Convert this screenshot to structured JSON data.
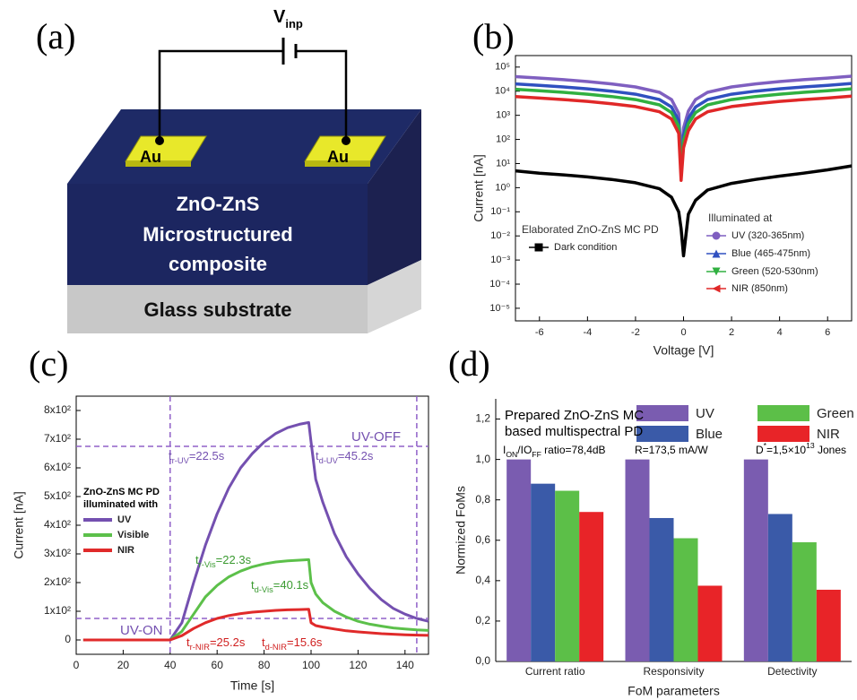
{
  "diagram": {
    "panel_label": "(a)",
    "voltage_label": "V",
    "voltage_subscript": "inp",
    "electrodes": [
      "Au",
      "Au"
    ],
    "composite_lines": [
      "ZnO-ZnS",
      "Microstructured",
      "composite"
    ],
    "substrate_label": "Glass substrate"
  },
  "chart_data": [
    {
      "type": "line",
      "panel_label": "(b)",
      "x_label": "Voltage [V]",
      "y_label": "Current [nA]",
      "log_y": true,
      "xlim": [
        -7,
        7
      ],
      "xticks": [
        -6,
        -4,
        -2,
        0,
        2,
        4,
        6
      ],
      "ylim": [
        3e-06,
        300000
      ],
      "yticks": [
        {
          "value": 100000,
          "label": "10⁵"
        },
        {
          "value": 10000,
          "label": "10⁴"
        },
        {
          "value": 1000,
          "label": "10³"
        },
        {
          "value": 100,
          "label": "10²"
        },
        {
          "value": 10,
          "label": "10¹"
        },
        {
          "value": 1,
          "label": "10⁰"
        },
        {
          "value": 0.1,
          "label": "10⁻¹"
        },
        {
          "value": 0.01,
          "label": "10⁻²"
        },
        {
          "value": 0.001,
          "label": "10⁻³"
        },
        {
          "value": 0.0001,
          "label": "10⁻⁴"
        },
        {
          "value": 1e-05,
          "label": "10⁻⁵"
        }
      ],
      "x": [
        -7,
        -6,
        -5,
        -4,
        -3,
        -2,
        -1,
        -0.5,
        -0.2,
        -0.1,
        0,
        0.2,
        0.5,
        1,
        2,
        3,
        4,
        5,
        6,
        7
      ],
      "series": [
        {
          "name": "UV (320-365nm)",
          "color": "#7f5fc0",
          "marker": "circle",
          "values": [
            40000,
            35000,
            30000,
            25000,
            20000,
            15000,
            9000,
            4500,
            1200,
            15,
            300,
            1500,
            4500,
            9000,
            15000,
            20000,
            25000,
            30000,
            35000,
            42000
          ]
        },
        {
          "name": "Blue (465-475nm)",
          "color": "#3050c0",
          "marker": "triangle-up",
          "values": [
            20000,
            17500,
            15000,
            12500,
            10000,
            7500,
            4500,
            2200,
            600,
            5,
            150,
            750,
            2200,
            4500,
            7500,
            10000,
            12500,
            15000,
            17500,
            21000
          ]
        },
        {
          "name": "Green (520-530nm)",
          "color": "#30b040",
          "marker": "triangle-down",
          "values": [
            12000,
            10500,
            9000,
            7500,
            6000,
            4500,
            2700,
            1300,
            350,
            4,
            90,
            450,
            1300,
            2700,
            4500,
            6000,
            7500,
            9000,
            10500,
            12500
          ]
        },
        {
          "name": "NIR (850nm)",
          "color": "#e02828",
          "marker": "triangle-left",
          "values": [
            6000,
            5200,
            4500,
            3800,
            3000,
            2300,
            1400,
            700,
            180,
            2,
            45,
            230,
            700,
            1400,
            2300,
            3000,
            3800,
            4500,
            5200,
            6200
          ]
        },
        {
          "name": "Dark condition",
          "color": "#000000",
          "marker": "square",
          "values": [
            5,
            4,
            3.4,
            2.8,
            2.2,
            1.6,
            0.9,
            0.4,
            0.1,
            0.02,
            0.0015,
            0.08,
            0.3,
            0.8,
            1.5,
            2.2,
            3,
            4,
            5.5,
            8
          ]
        }
      ],
      "annotations": [
        {
          "color": "#333333",
          "parts": [
            {
              "text": "Elaborated ZnO-ZnS MC PD"
            }
          ]
        },
        {
          "color": "#333333",
          "parts": [
            {
              "text": "Illuminated at"
            }
          ]
        }
      ]
    },
    {
      "type": "line",
      "panel_label": "(c)",
      "x_label": "Time [s]",
      "y_label": "Current [nA]",
      "xlim": [
        0,
        150
      ],
      "xticks": [
        0,
        20,
        40,
        60,
        80,
        100,
        120,
        140
      ],
      "ylim": [
        -50,
        850
      ],
      "yticks": [
        0,
        {
          "value": 100,
          "label": "1x10²"
        },
        {
          "value": 200,
          "label": "2x10²"
        },
        {
          "value": 300,
          "label": "3x10²"
        },
        {
          "value": 400,
          "label": "4x10²"
        },
        {
          "value": 500,
          "label": "5x10²"
        },
        {
          "value": 600,
          "label": "6x10²"
        },
        {
          "value": 700,
          "label": "7x10²"
        },
        {
          "value": 800,
          "label": "8x10²"
        }
      ],
      "reference_lines": {
        "color": "#9060c8",
        "x": [
          40,
          145
        ],
        "y": [
          675,
          75
        ]
      },
      "x": [
        3,
        10,
        20,
        30,
        40,
        45,
        50,
        55,
        60,
        65,
        70,
        75,
        80,
        85,
        90,
        95,
        99,
        100,
        102,
        105,
        110,
        115,
        120,
        125,
        130,
        135,
        140,
        145,
        150
      ],
      "series": [
        {
          "name": "UV",
          "color": "#7450b0",
          "values": [
            0,
            0,
            0,
            0,
            0,
            60,
            200,
            330,
            440,
            530,
            600,
            650,
            690,
            720,
            740,
            752,
            758,
            690,
            560,
            480,
            370,
            290,
            230,
            180,
            140,
            110,
            90,
            75,
            65
          ]
        },
        {
          "name": "Visible",
          "color": "#5cc04a",
          "values": [
            0,
            0,
            0,
            0,
            0,
            30,
            90,
            150,
            190,
            220,
            240,
            255,
            265,
            272,
            276,
            278,
            280,
            200,
            160,
            130,
            100,
            80,
            65,
            55,
            48,
            42,
            38,
            35,
            33
          ]
        },
        {
          "name": "NIR",
          "color": "#e02a2a",
          "values": [
            0,
            0,
            0,
            0,
            0,
            15,
            40,
            60,
            75,
            85,
            92,
            97,
            100,
            103,
            105,
            106,
            107,
            60,
            50,
            45,
            38,
            32,
            28,
            25,
            22,
            20,
            18,
            17,
            16
          ]
        }
      ],
      "annotations": [
        {
          "color": "#000000",
          "parts": [
            {
              "text": "ZnO-ZnS MC PD"
            }
          ]
        },
        {
          "color": "#000000",
          "parts": [
            {
              "text": "illuminated with"
            }
          ]
        },
        {
          "color": "#7450b0",
          "parts": [
            {
              "text": "UV-OFF"
            }
          ]
        },
        {
          "color": "#7450b0",
          "parts": [
            {
              "text": "UV-ON"
            }
          ]
        },
        {
          "color": "#7450b0",
          "parts": [
            {
              "text": "t"
            },
            {
              "sub": "r-UV"
            },
            {
              "text": "=22.5s"
            }
          ]
        },
        {
          "color": "#7450b0",
          "parts": [
            {
              "text": "t"
            },
            {
              "sub": "d-UV"
            },
            {
              "text": "=45.2s"
            }
          ]
        },
        {
          "color": "#3a9a30",
          "parts": [
            {
              "text": "t"
            },
            {
              "sub": "r-Vis"
            },
            {
              "text": "=22.3s"
            }
          ]
        },
        {
          "color": "#3a9a30",
          "parts": [
            {
              "text": "t"
            },
            {
              "sub": "d-Vis"
            },
            {
              "text": "=40.1s"
            }
          ]
        },
        {
          "color": "#d02020",
          "parts": [
            {
              "text": "t"
            },
            {
              "sub": "r-NIR"
            },
            {
              "text": "=25.2s"
            }
          ]
        },
        {
          "color": "#d02020",
          "parts": [
            {
              "text": "t"
            },
            {
              "sub": "d-NIR"
            },
            {
              "text": "=15.6s"
            }
          ]
        }
      ]
    },
    {
      "type": "bar",
      "panel_label": "(d)",
      "x_label": "FoM parameters",
      "y_label": "Normized FoMs",
      "categories": [
        "Current ratio",
        "Responsivity",
        "Detectivity"
      ],
      "ylim": [
        0,
        1.3
      ],
      "yticks": [
        {
          "value": 0,
          "label": "0,0"
        },
        {
          "value": 0.2,
          "label": "0,2"
        },
        {
          "value": 0.4,
          "label": "0,4"
        },
        {
          "value": 0.6,
          "label": "0,6"
        },
        {
          "value": 0.8,
          "label": "0,8"
        },
        {
          "value": 1,
          "label": "1,0"
        },
        {
          "value": 1.2,
          "label": "1,2"
        }
      ],
      "series": [
        {
          "name": "UV",
          "color": "#7a5cb0",
          "values": [
            1.0,
            1.0,
            1.0
          ]
        },
        {
          "name": "Blue",
          "color": "#3a5aa8",
          "values": [
            0.88,
            0.71,
            0.73
          ]
        },
        {
          "name": "Green",
          "color": "#5cbf48",
          "values": [
            0.845,
            0.61,
            0.59
          ]
        },
        {
          "name": "NIR",
          "color": "#e82428",
          "values": [
            0.74,
            0.375,
            0.355
          ]
        }
      ],
      "annotations": [
        {
          "color": "#000000",
          "parts": [
            {
              "text": "Prepared ZnO-ZnS MC"
            }
          ]
        },
        {
          "color": "#000000",
          "parts": [
            {
              "text": "based multispectral PD"
            }
          ]
        },
        {
          "color": "#000000",
          "parts": [
            {
              "text": "I"
            },
            {
              "sub": "ON"
            },
            {
              "text": "/IO"
            },
            {
              "sub": "FF"
            },
            {
              "text": " ratio=78,4dB"
            }
          ]
        },
        {
          "color": "#000000",
          "parts": [
            {
              "text": "R=173,5 mA/W"
            }
          ]
        },
        {
          "color": "#000000",
          "parts": [
            {
              "text": "D"
            },
            {
              "sup": "*"
            },
            {
              "text": "=1,5×10"
            },
            {
              "sup": "13"
            },
            {
              "text": " Jones"
            }
          ]
        }
      ]
    }
  ]
}
